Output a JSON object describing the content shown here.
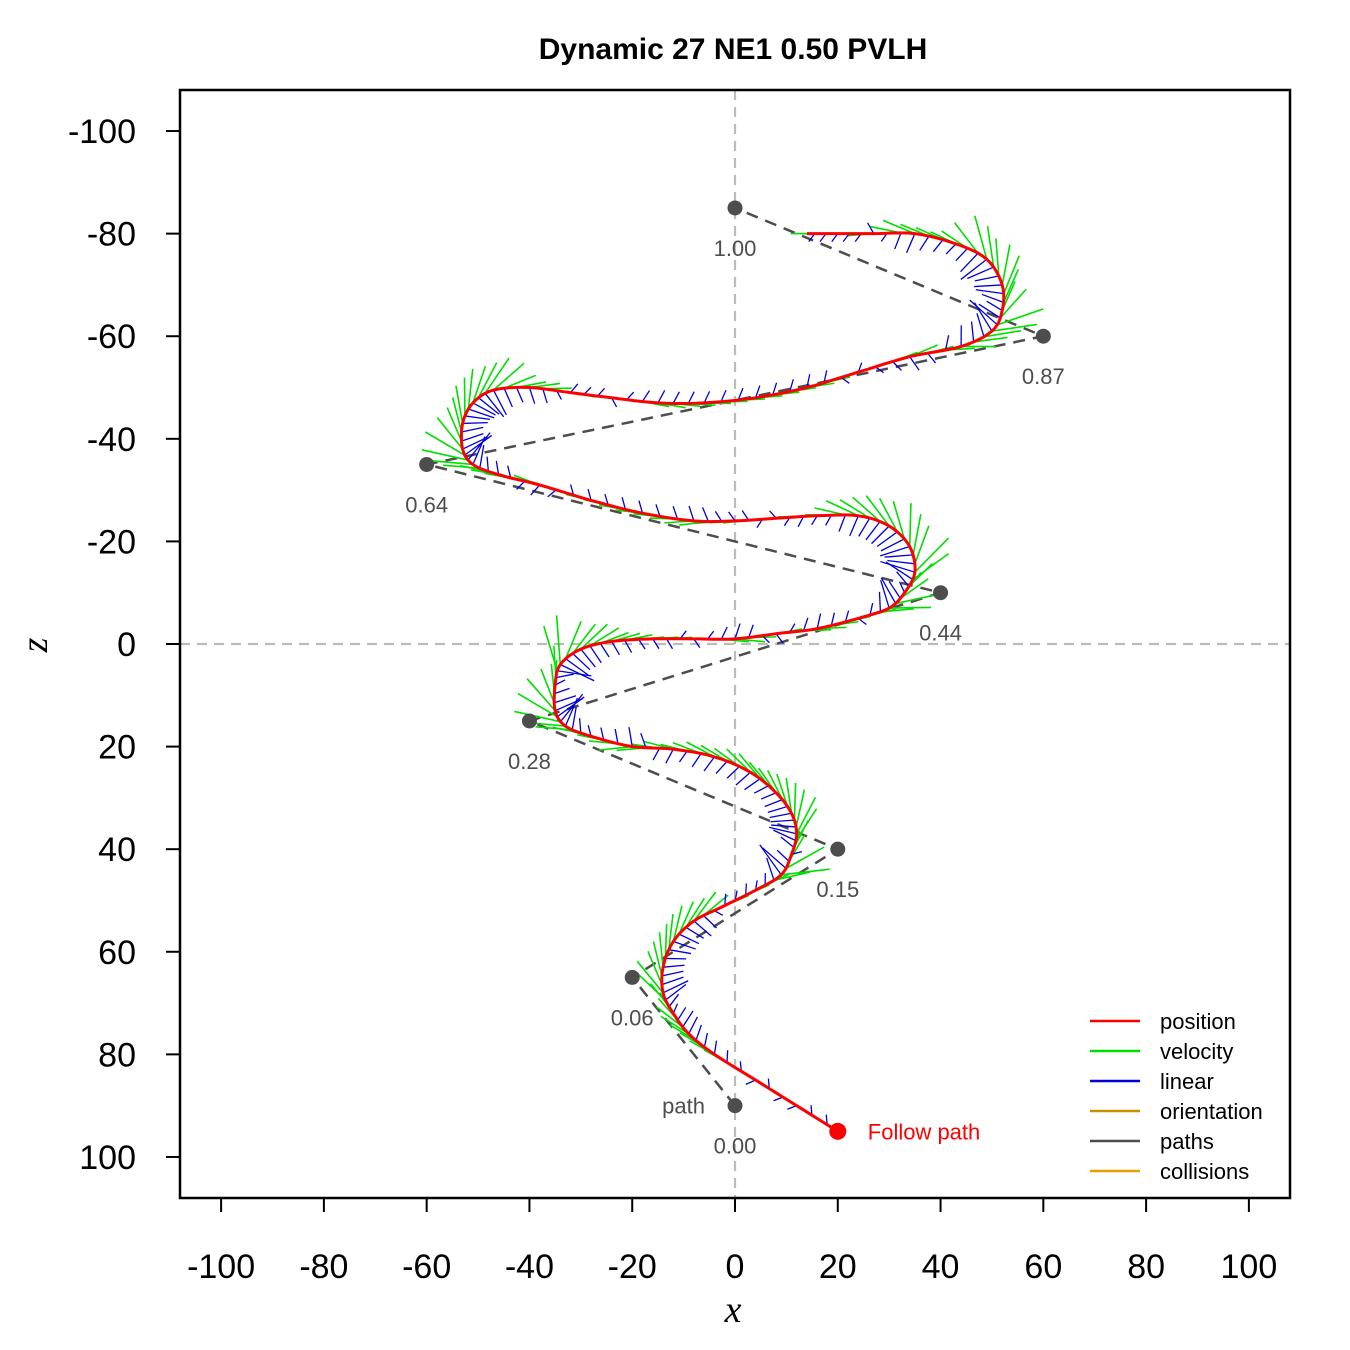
{
  "chart_data": {
    "type": "line",
    "title": "Dynamic 27 NE1 0.50 PVLH",
    "xlabel": "x",
    "ylabel": "z",
    "xlim": [
      -108,
      108
    ],
    "ylim": [
      108,
      -108
    ],
    "x_ticks": [
      -100,
      -80,
      -60,
      -40,
      -20,
      0,
      20,
      40,
      60,
      80,
      100
    ],
    "y_ticks": [
      -100,
      -80,
      -60,
      -40,
      -20,
      0,
      20,
      40,
      60,
      80,
      100
    ],
    "x_tick_labels": [
      "-100",
      "-80",
      "-60",
      "-40",
      "-20",
      "0",
      "20",
      "40",
      "60",
      "80",
      "100"
    ],
    "y_tick_labels": [
      "-100",
      "-80",
      "-60",
      "-40",
      "-20",
      "0",
      "20",
      "40",
      "60",
      "80",
      "100"
    ],
    "reference_lines": {
      "x": 0,
      "z": 0,
      "style": "dashed",
      "color": "#bbbbbb"
    },
    "colors": {
      "position": "#ff0000",
      "velocity": "#00e000",
      "linear": "#0000dd",
      "orientation": "#c89000",
      "paths": "#4d4d4d",
      "collisions": "#e8a000",
      "waypoint": "#4d4d4d"
    },
    "path_label": "path",
    "waypoints": [
      {
        "x": 0,
        "z": 90,
        "label": "0.00"
      },
      {
        "x": -20,
        "z": 65,
        "label": "0.06"
      },
      {
        "x": 20,
        "z": 40,
        "label": "0.15"
      },
      {
        "x": -40,
        "z": 15,
        "label": "0.28"
      },
      {
        "x": 40,
        "z": -10,
        "label": "0.44"
      },
      {
        "x": -60,
        "z": -35,
        "label": "0.64"
      },
      {
        "x": 60,
        "z": -60,
        "label": "0.87"
      },
      {
        "x": 0,
        "z": -85,
        "label": "1.00"
      }
    ],
    "agent": {
      "x": 20,
      "z": 95,
      "label": "Follow path",
      "color": "#ff0000"
    },
    "trajectory": [
      [
        20,
        95
      ],
      [
        12,
        90
      ],
      [
        4,
        85
      ],
      [
        -4,
        80
      ],
      [
        -9,
        76
      ],
      [
        -12,
        72
      ],
      [
        -14,
        68
      ],
      [
        -14,
        63
      ],
      [
        -12,
        58
      ],
      [
        -8,
        54
      ],
      [
        -2,
        51
      ],
      [
        4,
        48
      ],
      [
        9,
        45
      ],
      [
        11,
        41
      ],
      [
        12,
        37
      ],
      [
        11,
        33
      ],
      [
        8,
        29
      ],
      [
        3,
        25
      ],
      [
        -4,
        22
      ],
      [
        -12,
        20.5
      ],
      [
        -20,
        20
      ],
      [
        -28,
        18
      ],
      [
        -33,
        16
      ],
      [
        -35,
        13
      ],
      [
        -35,
        8
      ],
      [
        -34,
        4
      ],
      [
        -30,
        1
      ],
      [
        -24,
        -0.5
      ],
      [
        -16,
        -1
      ],
      [
        -8,
        -1
      ],
      [
        0,
        -1
      ],
      [
        8,
        -2
      ],
      [
        16,
        -3
      ],
      [
        24,
        -5
      ],
      [
        30,
        -7
      ],
      [
        33,
        -10
      ],
      [
        35,
        -14
      ],
      [
        34,
        -19
      ],
      [
        30,
        -23
      ],
      [
        24,
        -25
      ],
      [
        16,
        -25
      ],
      [
        8,
        -24.5
      ],
      [
        0,
        -24
      ],
      [
        -8,
        -24
      ],
      [
        -18,
        -25.5
      ],
      [
        -28,
        -28
      ],
      [
        -38,
        -31
      ],
      [
        -46,
        -33
      ],
      [
        -51,
        -35
      ],
      [
        -53,
        -38
      ],
      [
        -53,
        -43
      ],
      [
        -51,
        -47
      ],
      [
        -47,
        -49.5
      ],
      [
        -40,
        -50
      ],
      [
        -32,
        -49
      ],
      [
        -24,
        -48
      ],
      [
        -15,
        -47
      ],
      [
        -6,
        -47
      ],
      [
        4,
        -48
      ],
      [
        14,
        -50
      ],
      [
        24,
        -53
      ],
      [
        34,
        -56
      ],
      [
        44,
        -58
      ],
      [
        50,
        -61
      ],
      [
        52,
        -65
      ],
      [
        52,
        -70
      ],
      [
        49,
        -75
      ],
      [
        43,
        -78
      ],
      [
        35,
        -80
      ],
      [
        27,
        -80
      ],
      [
        20,
        -80
      ],
      [
        14,
        -80
      ]
    ],
    "legend": {
      "placement": "bottom-right",
      "entries": [
        {
          "label": "position",
          "color": "#ff0000"
        },
        {
          "label": "velocity",
          "color": "#00e000"
        },
        {
          "label": "linear",
          "color": "#0000dd"
        },
        {
          "label": "orientation",
          "color": "#c89000"
        },
        {
          "label": "paths",
          "color": "#4d4d4d"
        },
        {
          "label": "collisions",
          "color": "#e8a000"
        }
      ]
    }
  }
}
